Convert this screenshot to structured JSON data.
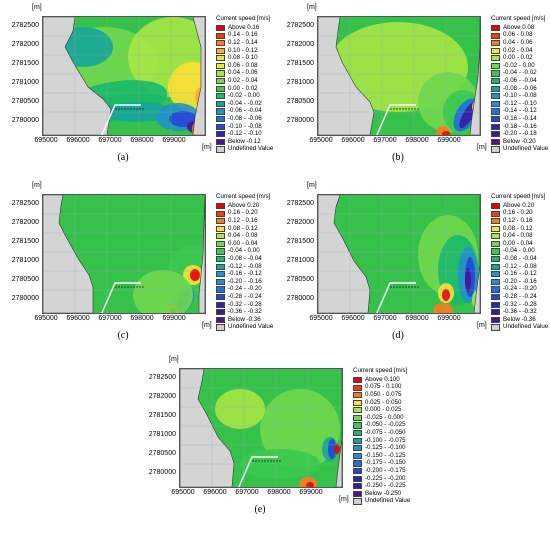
{
  "axis_unit": "[m]",
  "y_ticks": [
    "2782500",
    "2782000",
    "2781500",
    "2781000",
    "2780500",
    "2780000"
  ],
  "x_ticks": [
    "695000",
    "696000",
    "697000",
    "698000",
    "699000"
  ],
  "legend_title": "Current speed [m/s]",
  "colors": {
    "land": "#d4d4d4",
    "undefined": "#d0d0d0"
  },
  "panels": [
    {
      "caption": "(a)",
      "legend": [
        {
          "label": "Above  0.16",
          "color": "#e8000b"
        },
        {
          "label": "0.14 -  0.16",
          "color": "#f33b12"
        },
        {
          "label": "0.12 -  0.14",
          "color": "#fb7a1f"
        },
        {
          "label": "0.10 -  0.12",
          "color": "#fdab2a"
        },
        {
          "label": "0.08 -  0.10",
          "color": "#fde035"
        },
        {
          "label": "0.06 -  0.08",
          "color": "#d6f03c"
        },
        {
          "label": "0.04 -  0.06",
          "color": "#a6e646"
        },
        {
          "label": "0.02 -  0.04",
          "color": "#6fd84c"
        },
        {
          "label": "0.00 -  0.02",
          "color": "#39c94e"
        },
        {
          "label": "-0.02 -  0.00",
          "color": "#19b96a"
        },
        {
          "label": "-0.04 - -0.02",
          "color": "#17a59a"
        },
        {
          "label": "-0.06 - -0.04",
          "color": "#2191c8"
        },
        {
          "label": "-0.08 - -0.06",
          "color": "#1f6ee6"
        },
        {
          "label": "-0.10 - -0.08",
          "color": "#2446d8"
        },
        {
          "label": "-0.12 - -0.10",
          "color": "#2b26b8"
        },
        {
          "label": "Below -0.12",
          "color": "#4c1490"
        },
        {
          "label": "Undefined Value",
          "color": "#d0d0d0"
        }
      ]
    },
    {
      "caption": "(b)",
      "legend": [
        {
          "label": "Above  0.08",
          "color": "#e8000b"
        },
        {
          "label": "0.06 -  0.08",
          "color": "#f33b12"
        },
        {
          "label": "0.04 -  0.06",
          "color": "#fb7a1f"
        },
        {
          "label": "0.02 -  0.04",
          "color": "#fde035"
        },
        {
          "label": "0.00 -  0.02",
          "color": "#a6e646"
        },
        {
          "label": "-0.02 -  0.00",
          "color": "#6fd84c"
        },
        {
          "label": "-0.04 - -0.02",
          "color": "#39c94e"
        },
        {
          "label": "-0.06 - -0.04",
          "color": "#19b96a"
        },
        {
          "label": "-0.08 - -0.06",
          "color": "#17a59a"
        },
        {
          "label": "-0.10 - -0.08",
          "color": "#2191c8"
        },
        {
          "label": "-0.12 - -0.10",
          "color": "#1f8ee0"
        },
        {
          "label": "-0.14 - -0.12",
          "color": "#1f6ee6"
        },
        {
          "label": "-0.16 - -0.14",
          "color": "#2446d8"
        },
        {
          "label": "-0.18 - -0.16",
          "color": "#2b26b8"
        },
        {
          "label": "-0.20 - -0.18",
          "color": "#3a1aa0"
        },
        {
          "label": "Below -0.20",
          "color": "#4c1490"
        },
        {
          "label": "Undefined Value",
          "color": "#d0d0d0"
        }
      ]
    },
    {
      "caption": "(c)",
      "legend": [
        {
          "label": "Above  0.20",
          "color": "#e8000b"
        },
        {
          "label": "0.16 -  0.20",
          "color": "#f33b12"
        },
        {
          "label": "0.12 -  0.16",
          "color": "#fb7a1f"
        },
        {
          "label": "0.08 -  0.12",
          "color": "#fde035"
        },
        {
          "label": "0.04 -  0.08",
          "color": "#a6e646"
        },
        {
          "label": "0.00 -  0.04",
          "color": "#6fd84c"
        },
        {
          "label": "-0.04 -  0.00",
          "color": "#39c94e"
        },
        {
          "label": "-0.08 - -0.04",
          "color": "#19b96a"
        },
        {
          "label": "-0.12 - -0.08",
          "color": "#17a59a"
        },
        {
          "label": "-0.16 - -0.12",
          "color": "#2191c8"
        },
        {
          "label": "-0.20 - -0.16",
          "color": "#1f8ee0"
        },
        {
          "label": "-0.24 - -0.20",
          "color": "#1f6ee6"
        },
        {
          "label": "-0.28 - -0.24",
          "color": "#2446d8"
        },
        {
          "label": "-0.32 - -0.28",
          "color": "#2b26b8"
        },
        {
          "label": "-0.36 - -0.32",
          "color": "#3a1aa0"
        },
        {
          "label": "Below -0.36",
          "color": "#4c1490"
        },
        {
          "label": "Undefined Value",
          "color": "#d0d0d0"
        }
      ]
    },
    {
      "caption": "(d)",
      "legend": [
        {
          "label": "Above  0.20",
          "color": "#e8000b"
        },
        {
          "label": "0.16 -  0.20",
          "color": "#f33b12"
        },
        {
          "label": "0.12 -  0.16",
          "color": "#fb7a1f"
        },
        {
          "label": "0.08 -  0.12",
          "color": "#fde035"
        },
        {
          "label": "0.04 -  0.08",
          "color": "#a6e646"
        },
        {
          "label": "0.00 -  0.04",
          "color": "#6fd84c"
        },
        {
          "label": "-0.04 -  0.00",
          "color": "#39c94e"
        },
        {
          "label": "-0.08 - -0.04",
          "color": "#19b96a"
        },
        {
          "label": "-0.12 - -0.08",
          "color": "#17a59a"
        },
        {
          "label": "-0.16 - -0.12",
          "color": "#2191c8"
        },
        {
          "label": "-0.20 - -0.16",
          "color": "#1f8ee0"
        },
        {
          "label": "-0.24 - -0.20",
          "color": "#1f6ee6"
        },
        {
          "label": "-0.28 - -0.24",
          "color": "#2446d8"
        },
        {
          "label": "-0.32 - -0.28",
          "color": "#2b26b8"
        },
        {
          "label": "-0.36 - -0.32",
          "color": "#3a1aa0"
        },
        {
          "label": "Below -0.36",
          "color": "#4c1490"
        },
        {
          "label": "Undefined Value",
          "color": "#d0d0d0"
        }
      ]
    },
    {
      "caption": "(e)",
      "legend": [
        {
          "label": "Above  0.100",
          "color": "#e8000b"
        },
        {
          "label": "0.075 -  0.100",
          "color": "#f33b12"
        },
        {
          "label": "0.050 -  0.075",
          "color": "#fb7a1f"
        },
        {
          "label": "0.025 -  0.050",
          "color": "#fde035"
        },
        {
          "label": "0.000 -  0.025",
          "color": "#a6e646"
        },
        {
          "label": "-0.025 -  0.000",
          "color": "#6fd84c"
        },
        {
          "label": "-0.050 - -0.025",
          "color": "#39c94e"
        },
        {
          "label": "-0.075 - -0.050",
          "color": "#19b96a"
        },
        {
          "label": "-0.100 - -0.075",
          "color": "#17a59a"
        },
        {
          "label": "-0.125 - -0.100",
          "color": "#2191c8"
        },
        {
          "label": "-0.150 - -0.125",
          "color": "#1f8ee0"
        },
        {
          "label": "-0.175 - -0.150",
          "color": "#1f6ee6"
        },
        {
          "label": "-0.200 - -0.175",
          "color": "#2446d8"
        },
        {
          "label": "-0.225 - -0.200",
          "color": "#2b26b8"
        },
        {
          "label": "-0.250 - -0.225",
          "color": "#3a1aa0"
        },
        {
          "label": "Below  -0.250",
          "color": "#4c1490"
        },
        {
          "label": "Undefined Value",
          "color": "#d0d0d0"
        }
      ]
    }
  ]
}
